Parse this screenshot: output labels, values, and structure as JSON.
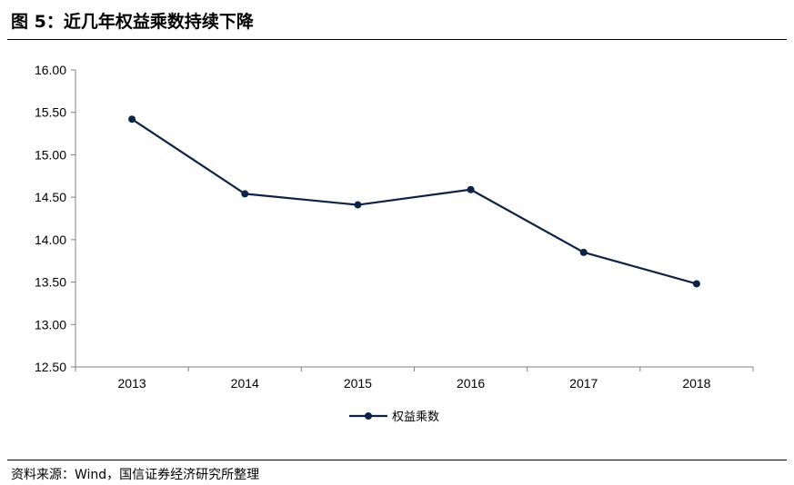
{
  "figure": {
    "title": "图 5：近几年权益乘数持续下降",
    "source": "资料来源：Wind，国信证券经济研究所整理"
  },
  "chart_data": {
    "type": "line",
    "title": "",
    "xlabel": "",
    "ylabel": "",
    "categories": [
      "2013",
      "2014",
      "2015",
      "2016",
      "2017",
      "2018"
    ],
    "series": [
      {
        "name": "权益乘数",
        "values": [
          15.42,
          14.54,
          14.41,
          14.59,
          13.85,
          13.48
        ],
        "color": "#0d2346"
      }
    ],
    "ylim": [
      12.5,
      16.0
    ],
    "yticks": [
      "12.50",
      "13.00",
      "13.50",
      "14.00",
      "14.50",
      "15.00",
      "15.50",
      "16.00"
    ],
    "grid": false,
    "legend_position": "bottom-center",
    "markers": true
  }
}
